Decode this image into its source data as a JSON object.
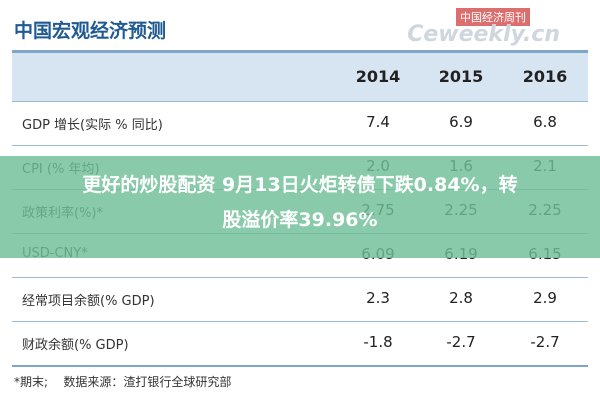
{
  "header": {
    "title": "中国宏观经济预测",
    "watermark": "中国经济周刊",
    "watermark_site": "Ceweekly.cn"
  },
  "table": {
    "columns": [
      "2014",
      "2015",
      "2016"
    ],
    "rows": [
      [
        "GDP 增长(实际 % 同比)",
        "7.4",
        "6.9",
        "6.8"
      ],
      [
        "CPI (% 年均)",
        "2.0",
        "1.6",
        "2.1"
      ],
      [
        "政策利率(%)*",
        "2.75",
        "2.25",
        "2.25"
      ],
      [
        "USD-CNY*",
        "6.09",
        "6.19",
        "6.15"
      ],
      [
        "经常项目余额(% GDP)",
        "2.3",
        "2.8",
        "2.9"
      ],
      [
        "财政余额(% GDP)",
        "-1.8",
        "-2.7",
        "-2.7"
      ]
    ]
  },
  "footer": {
    "note": "*期末;",
    "source": "数据来源：渣打银行全球研究部"
  },
  "banner": {
    "line1": "更好的炒股配资 9月13日火炬转债下跌0.84%，转",
    "line2": "股溢价率39.96%"
  }
}
